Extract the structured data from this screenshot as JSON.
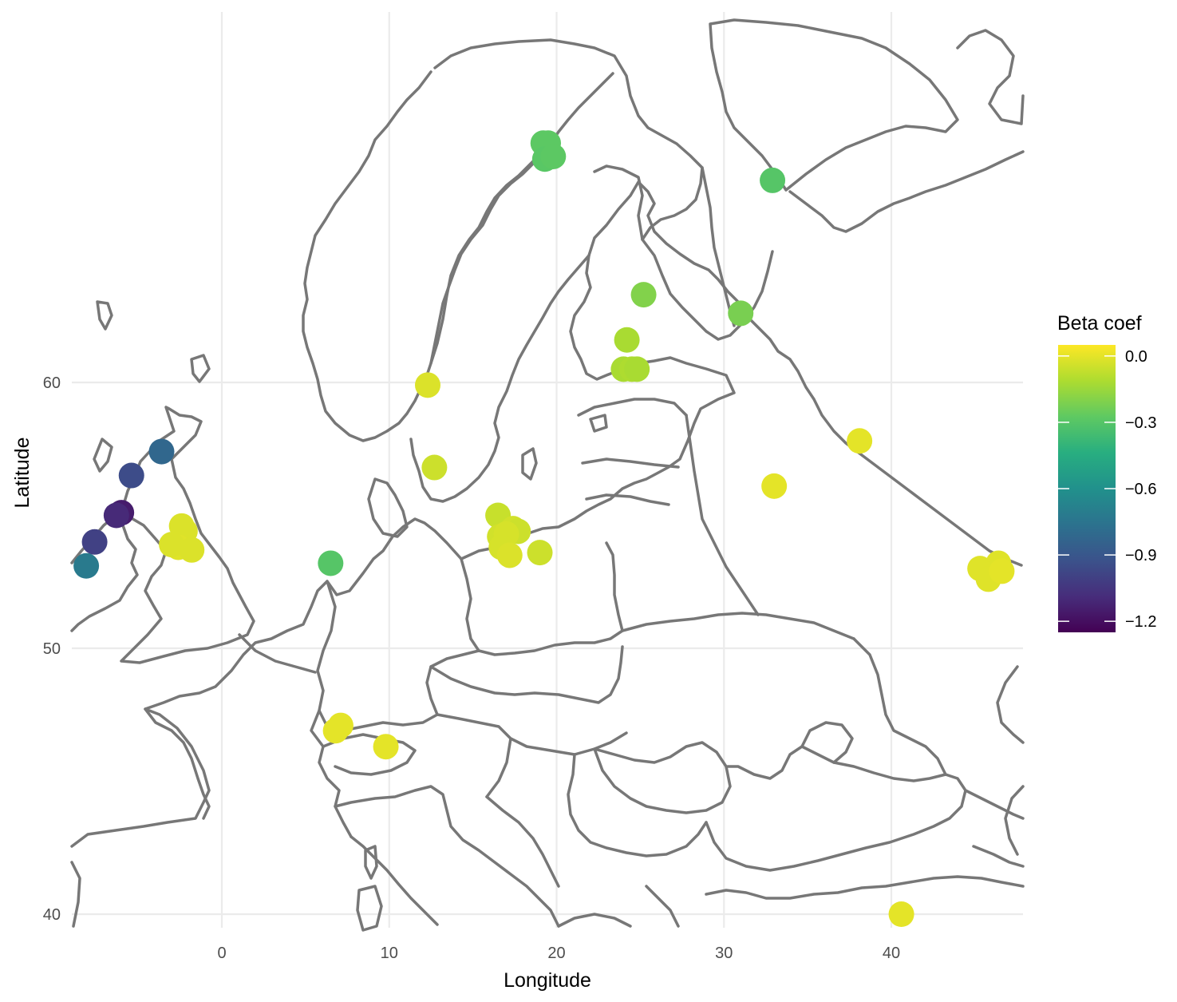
{
  "chart_data": {
    "type": "scatter",
    "title": "",
    "xlabel": "Longitude",
    "ylabel": "Latitude",
    "xlim": [
      -9,
      48
    ],
    "ylim": [
      39,
      70.5
    ],
    "x_ticks": [
      0,
      10,
      20,
      30,
      40
    ],
    "y_ticks": [
      40,
      50,
      60
    ],
    "grid": true,
    "basemap": "Europe country borders and coastlines",
    "color_scale": {
      "name": "Beta coef",
      "palette": "viridis",
      "range": [
        -1.25,
        0.05
      ],
      "ticks": [
        0.0,
        -0.3,
        -0.6,
        -0.9,
        -1.2
      ],
      "tick_labels": [
        "0.0",
        "−0.3",
        "−0.6",
        "−0.9",
        "−1.2"
      ]
    },
    "legend_position": "right",
    "points": [
      {
        "lon": 19.2,
        "lat": 69.0,
        "value": -0.28
      },
      {
        "lon": 19.5,
        "lat": 69.0,
        "value": -0.28
      },
      {
        "lon": 19.3,
        "lat": 68.4,
        "value": -0.29
      },
      {
        "lon": 19.8,
        "lat": 68.5,
        "value": -0.28
      },
      {
        "lon": 32.9,
        "lat": 67.6,
        "value": -0.3
      },
      {
        "lon": 25.2,
        "lat": 63.3,
        "value": -0.2
      },
      {
        "lon": 31.0,
        "lat": 62.6,
        "value": -0.22
      },
      {
        "lon": 24.2,
        "lat": 61.6,
        "value": -0.12
      },
      {
        "lon": 24.0,
        "lat": 60.5,
        "value": -0.12
      },
      {
        "lon": 24.5,
        "lat": 60.5,
        "value": -0.11
      },
      {
        "lon": 24.8,
        "lat": 60.5,
        "value": -0.12
      },
      {
        "lon": 12.3,
        "lat": 59.9,
        "value": -0.02
      },
      {
        "lon": 12.7,
        "lat": 56.8,
        "value": -0.05
      },
      {
        "lon": 16.5,
        "lat": 55.0,
        "value": -0.06
      },
      {
        "lon": 17.4,
        "lat": 54.5,
        "value": -0.04
      },
      {
        "lon": 17.7,
        "lat": 54.4,
        "value": -0.05
      },
      {
        "lon": 16.6,
        "lat": 54.2,
        "value": -0.04
      },
      {
        "lon": 17.0,
        "lat": 54.3,
        "value": -0.03
      },
      {
        "lon": 16.7,
        "lat": 53.8,
        "value": -0.03
      },
      {
        "lon": 17.2,
        "lat": 53.5,
        "value": -0.02
      },
      {
        "lon": 19.0,
        "lat": 53.6,
        "value": -0.05
      },
      {
        "lon": 6.5,
        "lat": 53.2,
        "value": -0.3
      },
      {
        "lon": -2.4,
        "lat": 54.6,
        "value": -0.02
      },
      {
        "lon": -2.2,
        "lat": 54.4,
        "value": -0.02
      },
      {
        "lon": -2.6,
        "lat": 53.8,
        "value": -0.01
      },
      {
        "lon": -3.0,
        "lat": 53.9,
        "value": -0.02
      },
      {
        "lon": -1.8,
        "lat": 53.7,
        "value": -0.02
      },
      {
        "lon": -3.6,
        "lat": 57.4,
        "value": -0.82
      },
      {
        "lon": -5.4,
        "lat": 56.5,
        "value": -0.95
      },
      {
        "lon": -6.0,
        "lat": 55.1,
        "value": -1.15
      },
      {
        "lon": -6.3,
        "lat": 55.0,
        "value": -1.1
      },
      {
        "lon": -7.6,
        "lat": 54.0,
        "value": -1.0
      },
      {
        "lon": -8.1,
        "lat": 53.1,
        "value": -0.72
      },
      {
        "lon": 38.1,
        "lat": 57.8,
        "value": 0.0
      },
      {
        "lon": 33.0,
        "lat": 56.1,
        "value": 0.0
      },
      {
        "lon": 45.3,
        "lat": 53.0,
        "value": -0.01
      },
      {
        "lon": 46.4,
        "lat": 53.2,
        "value": -0.01
      },
      {
        "lon": 46.0,
        "lat": 52.8,
        "value": -0.01
      },
      {
        "lon": 45.8,
        "lat": 52.6,
        "value": -0.01
      },
      {
        "lon": 46.6,
        "lat": 52.9,
        "value": 0.0
      },
      {
        "lon": 6.8,
        "lat": 46.9,
        "value": 0.0
      },
      {
        "lon": 7.1,
        "lat": 47.1,
        "value": 0.0
      },
      {
        "lon": 9.8,
        "lat": 46.3,
        "value": 0.0
      },
      {
        "lon": 40.6,
        "lat": 40.0,
        "value": 0.0
      }
    ]
  }
}
